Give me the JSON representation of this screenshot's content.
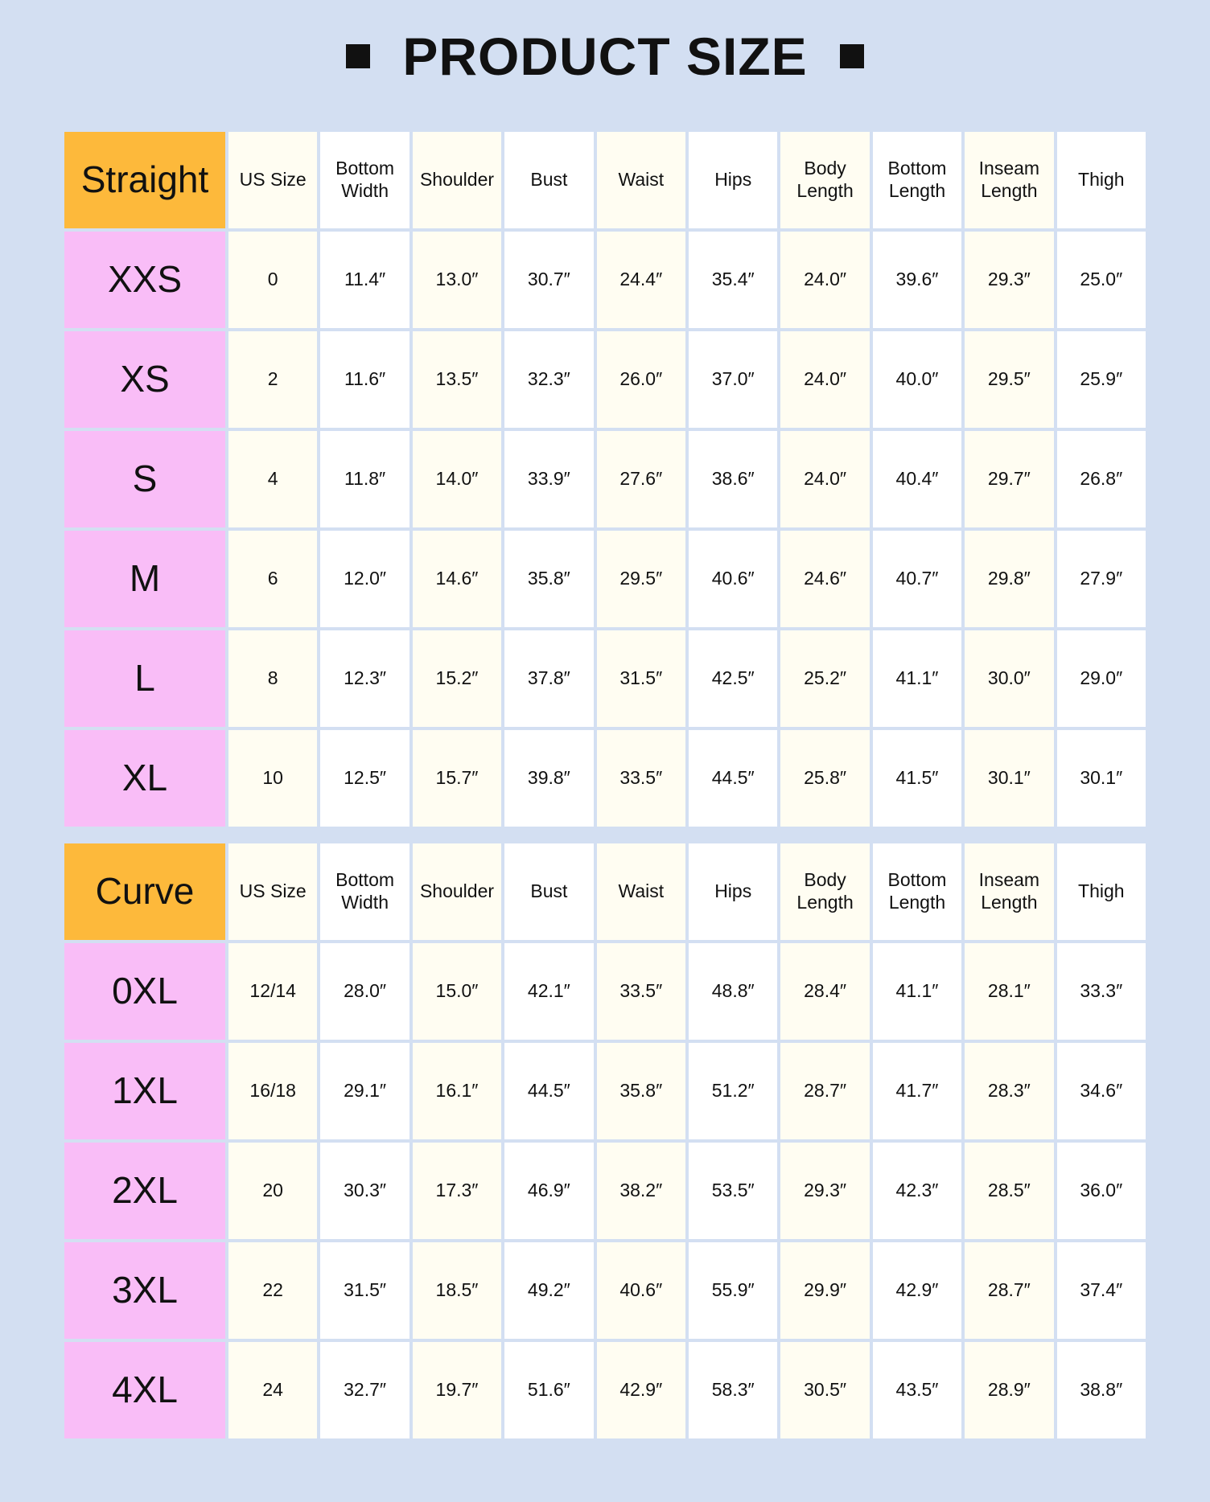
{
  "title": "PRODUCT SIZE",
  "colors": {
    "background": "#d3dff2",
    "corner": "#fdb93b",
    "size_label": "#f9bdf7",
    "cell_alt": "#fffdf2",
    "cell": "#ffffff"
  },
  "tables": [
    {
      "label": "Straight",
      "headers": [
        "US Size",
        "Bottom Width",
        "Shoulder",
        "Bust",
        "Waist",
        "Hips",
        "Body Length",
        "Bottom Length",
        "Inseam Length",
        "Thigh"
      ],
      "rows": [
        {
          "size": "XXS",
          "values": [
            "0",
            "11.4″",
            "13.0″",
            "30.7″",
            "24.4″",
            "35.4″",
            "24.0″",
            "39.6″",
            "29.3″",
            "25.0″"
          ]
        },
        {
          "size": "XS",
          "values": [
            "2",
            "11.6″",
            "13.5″",
            "32.3″",
            "26.0″",
            "37.0″",
            "24.0″",
            "40.0″",
            "29.5″",
            "25.9″"
          ]
        },
        {
          "size": "S",
          "values": [
            "4",
            "11.8″",
            "14.0″",
            "33.9″",
            "27.6″",
            "38.6″",
            "24.0″",
            "40.4″",
            "29.7″",
            "26.8″"
          ]
        },
        {
          "size": "M",
          "values": [
            "6",
            "12.0″",
            "14.6″",
            "35.8″",
            "29.5″",
            "40.6″",
            "24.6″",
            "40.7″",
            "29.8″",
            "27.9″"
          ]
        },
        {
          "size": "L",
          "values": [
            "8",
            "12.3″",
            "15.2″",
            "37.8″",
            "31.5″",
            "42.5″",
            "25.2″",
            "41.1″",
            "30.0″",
            "29.0″"
          ]
        },
        {
          "size": "XL",
          "values": [
            "10",
            "12.5″",
            "15.7″",
            "39.8″",
            "33.5″",
            "44.5″",
            "25.8″",
            "41.5″",
            "30.1″",
            "30.1″"
          ]
        }
      ]
    },
    {
      "label": "Curve",
      "headers": [
        "US Size",
        "Bottom Width",
        "Shoulder",
        "Bust",
        "Waist",
        "Hips",
        "Body Length",
        "Bottom Length",
        "Inseam Length",
        "Thigh"
      ],
      "rows": [
        {
          "size": "0XL",
          "values": [
            "12/14",
            "28.0″",
            "15.0″",
            "42.1″",
            "33.5″",
            "48.8″",
            "28.4″",
            "41.1″",
            "28.1″",
            "33.3″"
          ]
        },
        {
          "size": "1XL",
          "values": [
            "16/18",
            "29.1″",
            "16.1″",
            "44.5″",
            "35.8″",
            "51.2″",
            "28.7″",
            "41.7″",
            "28.3″",
            "34.6″"
          ]
        },
        {
          "size": "2XL",
          "values": [
            "20",
            "30.3″",
            "17.3″",
            "46.9″",
            "38.2″",
            "53.5″",
            "29.3″",
            "42.3″",
            "28.5″",
            "36.0″"
          ]
        },
        {
          "size": "3XL",
          "values": [
            "22",
            "31.5″",
            "18.5″",
            "49.2″",
            "40.6″",
            "55.9″",
            "29.9″",
            "42.9″",
            "28.7″",
            "37.4″"
          ]
        },
        {
          "size": "4XL",
          "values": [
            "24",
            "32.7″",
            "19.7″",
            "51.6″",
            "42.9″",
            "58.3″",
            "30.5″",
            "43.5″",
            "28.9″",
            "38.8″"
          ]
        }
      ]
    }
  ]
}
